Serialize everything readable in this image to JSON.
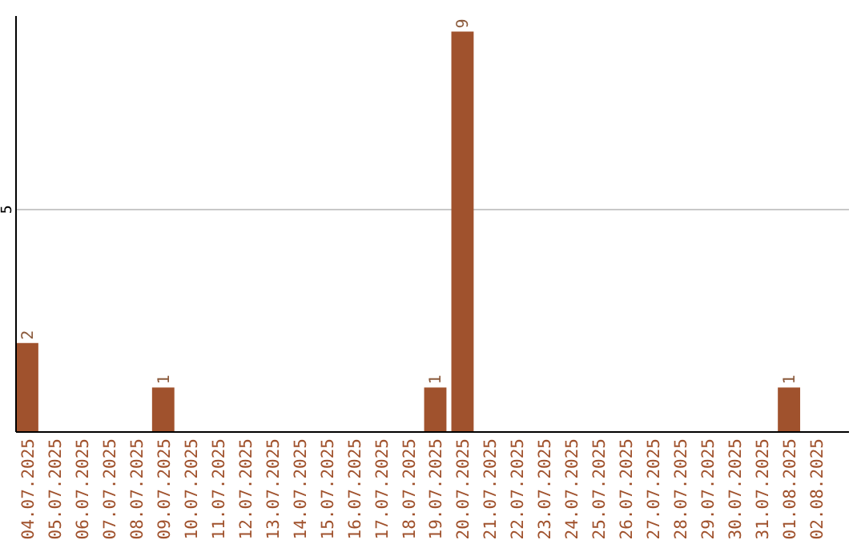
{
  "chart_data": {
    "type": "bar",
    "categories": [
      "04.07.2025",
      "05.07.2025",
      "06.07.2025",
      "07.07.2025",
      "08.07.2025",
      "09.07.2025",
      "10.07.2025",
      "11.07.2025",
      "12.07.2025",
      "13.07.2025",
      "14.07.2025",
      "15.07.2025",
      "16.07.2025",
      "17.07.2025",
      "18.07.2025",
      "19.07.2025",
      "20.07.2025",
      "21.07.2025",
      "22.07.2025",
      "23.07.2025",
      "24.07.2025",
      "25.07.2025",
      "26.07.2025",
      "27.07.2025",
      "28.07.2025",
      "29.07.2025",
      "30.07.2025",
      "31.07.2025",
      "01.08.2025",
      "02.08.2025"
    ],
    "values": [
      2,
      0,
      0,
      0,
      0,
      1,
      0,
      0,
      0,
      0,
      0,
      0,
      0,
      0,
      0,
      1,
      9,
      0,
      0,
      0,
      0,
      0,
      0,
      0,
      0,
      0,
      0,
      0,
      1,
      0
    ],
    "value_labels": [
      "2",
      null,
      null,
      null,
      null,
      "1",
      null,
      null,
      null,
      null,
      null,
      null,
      null,
      null,
      null,
      "1",
      "9",
      null,
      null,
      null,
      null,
      null,
      null,
      null,
      null,
      null,
      null,
      null,
      "1",
      null
    ],
    "color": "#a0522d",
    "ylim": [
      0,
      9.35
    ],
    "yticks": [
      5
    ],
    "grid": "y"
  }
}
